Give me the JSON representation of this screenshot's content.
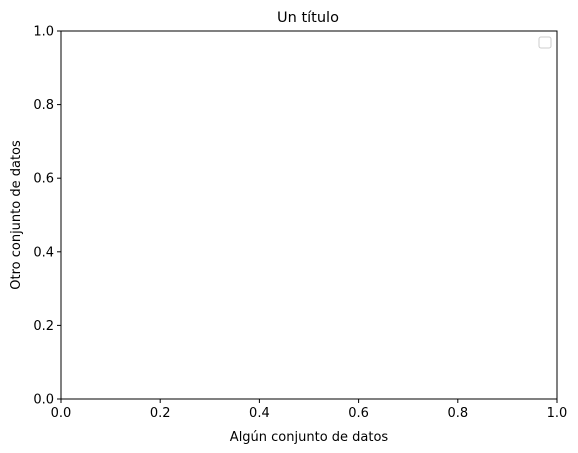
{
  "chart_data": {
    "type": "line",
    "title": "Un título",
    "xlabel": "Algún conjunto de datos",
    "ylabel": "Otro conjunto de datos",
    "xlim": [
      0.0,
      1.0
    ],
    "ylim": [
      0.0,
      1.0
    ],
    "xticks": [
      "0.0",
      "0.2",
      "0.4",
      "0.6",
      "0.8",
      "1.0"
    ],
    "yticks": [
      "0.0",
      "0.2",
      "0.4",
      "0.6",
      "0.8",
      "1.0"
    ],
    "series": [],
    "legend": {
      "placement": "top-right",
      "entries": []
    },
    "grid": false
  },
  "colors": {
    "axes": "#000000",
    "background": "#ffffff",
    "legend_border": "#cccccc"
  }
}
